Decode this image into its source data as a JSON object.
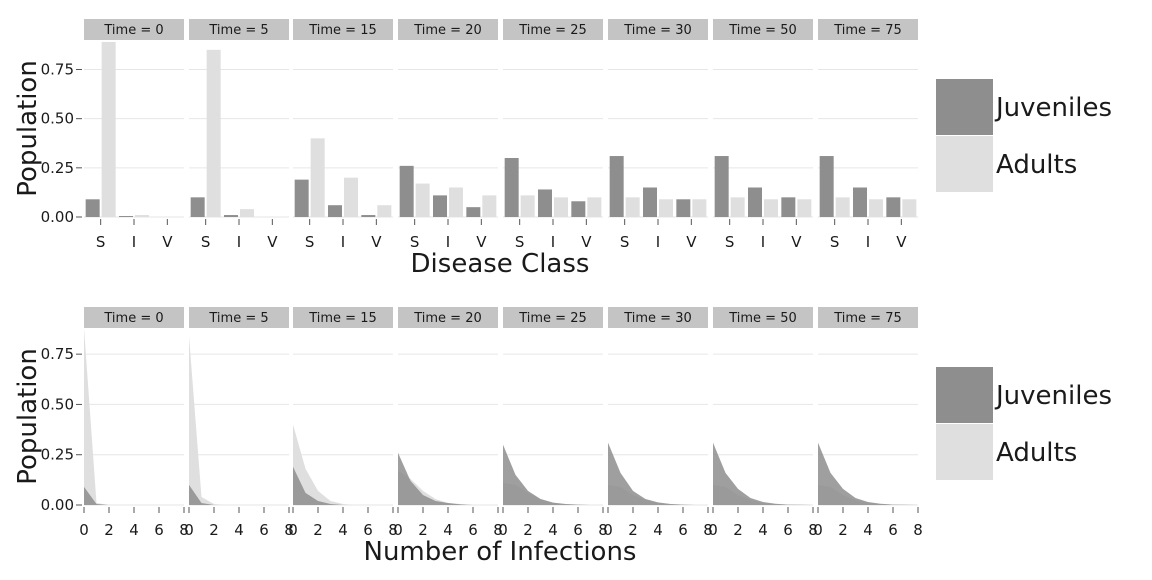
{
  "colors": {
    "juveniles": "#8e8e8e",
    "adults": "#dfdfdf",
    "strip": "#c4c4c4",
    "grid": "#e6e6e6"
  },
  "legend": {
    "items": [
      "Juveniles",
      "Adults"
    ]
  },
  "panels": [
    "Time = 0",
    "Time = 5",
    "Time = 15",
    "Time = 20",
    "Time = 25",
    "Time = 30",
    "Time = 50",
    "Time = 75"
  ],
  "chart_data": [
    {
      "type": "bar",
      "xlabel": "Disease Class",
      "ylabel": "Population",
      "categories": [
        "S",
        "I",
        "V"
      ],
      "ylim": [
        0,
        0.9
      ],
      "yticks": [
        "0.00",
        "0.25",
        "0.50",
        "0.75"
      ],
      "legend_position": "right",
      "facets": [
        {
          "label": "Time = 0",
          "series": [
            {
              "name": "Juveniles",
              "values": [
                0.09,
                0.005,
                0.0
              ]
            },
            {
              "name": "Adults",
              "values": [
                0.89,
                0.01,
                0.0
              ]
            }
          ]
        },
        {
          "label": "Time = 5",
          "series": [
            {
              "name": "Juveniles",
              "values": [
                0.1,
                0.01,
                0.0
              ]
            },
            {
              "name": "Adults",
              "values": [
                0.85,
                0.04,
                0.0
              ]
            }
          ]
        },
        {
          "label": "Time = 15",
          "series": [
            {
              "name": "Juveniles",
              "values": [
                0.19,
                0.06,
                0.01
              ]
            },
            {
              "name": "Adults",
              "values": [
                0.4,
                0.2,
                0.06
              ]
            }
          ]
        },
        {
          "label": "Time = 20",
          "series": [
            {
              "name": "Juveniles",
              "values": [
                0.26,
                0.11,
                0.05
              ]
            },
            {
              "name": "Adults",
              "values": [
                0.17,
                0.15,
                0.11
              ]
            }
          ]
        },
        {
          "label": "Time = 25",
          "series": [
            {
              "name": "Juveniles",
              "values": [
                0.3,
                0.14,
                0.08
              ]
            },
            {
              "name": "Adults",
              "values": [
                0.11,
                0.1,
                0.1
              ]
            }
          ]
        },
        {
          "label": "Time = 30",
          "series": [
            {
              "name": "Juveniles",
              "values": [
                0.31,
                0.15,
                0.09
              ]
            },
            {
              "name": "Adults",
              "values": [
                0.1,
                0.09,
                0.09
              ]
            }
          ]
        },
        {
          "label": "Time = 50",
          "series": [
            {
              "name": "Juveniles",
              "values": [
                0.31,
                0.15,
                0.1
              ]
            },
            {
              "name": "Adults",
              "values": [
                0.1,
                0.09,
                0.09
              ]
            }
          ]
        },
        {
          "label": "Time = 75",
          "series": [
            {
              "name": "Juveniles",
              "values": [
                0.31,
                0.15,
                0.1
              ]
            },
            {
              "name": "Adults",
              "values": [
                0.1,
                0.09,
                0.09
              ]
            }
          ]
        }
      ]
    },
    {
      "type": "area",
      "xlabel": "Number of Infections",
      "ylabel": "Population",
      "x": [
        0,
        1,
        2,
        3,
        4,
        5,
        6,
        7,
        8
      ],
      "xticks": [
        "0",
        "2",
        "4",
        "6",
        "8"
      ],
      "xlim": [
        0,
        8
      ],
      "ylim": [
        0,
        0.88
      ],
      "yticks": [
        "0.00",
        "0.25",
        "0.50",
        "0.75"
      ],
      "legend_position": "right",
      "facets": [
        {
          "label": "Time = 0",
          "series": [
            {
              "name": "Juveniles",
              "values": [
                0.09,
                0.005,
                0,
                0,
                0,
                0,
                0,
                0,
                0
              ]
            },
            {
              "name": "Adults",
              "values": [
                0.88,
                0.01,
                0,
                0,
                0,
                0,
                0,
                0,
                0
              ]
            }
          ]
        },
        {
          "label": "Time = 5",
          "series": [
            {
              "name": "Juveniles",
              "values": [
                0.1,
                0.01,
                0,
                0,
                0,
                0,
                0,
                0,
                0
              ]
            },
            {
              "name": "Adults",
              "values": [
                0.84,
                0.04,
                0.005,
                0,
                0,
                0,
                0,
                0,
                0
              ]
            }
          ]
        },
        {
          "label": "Time = 15",
          "series": [
            {
              "name": "Juveniles",
              "values": [
                0.19,
                0.06,
                0.02,
                0.005,
                0,
                0,
                0,
                0,
                0
              ]
            },
            {
              "name": "Adults",
              "values": [
                0.4,
                0.18,
                0.07,
                0.02,
                0.005,
                0,
                0,
                0,
                0
              ]
            }
          ]
        },
        {
          "label": "Time = 20",
          "series": [
            {
              "name": "Juveniles",
              "values": [
                0.26,
                0.12,
                0.05,
                0.02,
                0.01,
                0.003,
                0,
                0,
                0
              ]
            },
            {
              "name": "Adults",
              "values": [
                0.17,
                0.13,
                0.07,
                0.03,
                0.01,
                0.005,
                0,
                0,
                0
              ]
            }
          ]
        },
        {
          "label": "Time = 25",
          "series": [
            {
              "name": "Juveniles",
              "values": [
                0.3,
                0.15,
                0.07,
                0.03,
                0.012,
                0.005,
                0.002,
                0,
                0
              ]
            },
            {
              "name": "Adults",
              "values": [
                0.11,
                0.1,
                0.06,
                0.03,
                0.012,
                0.005,
                0.002,
                0,
                0
              ]
            }
          ]
        },
        {
          "label": "Time = 30",
          "series": [
            {
              "name": "Juveniles",
              "values": [
                0.31,
                0.16,
                0.07,
                0.03,
                0.013,
                0.005,
                0.002,
                0,
                0
              ]
            },
            {
              "name": "Adults",
              "values": [
                0.1,
                0.09,
                0.05,
                0.025,
                0.01,
                0.005,
                0.002,
                0,
                0
              ]
            }
          ]
        },
        {
          "label": "Time = 50",
          "series": [
            {
              "name": "Juveniles",
              "values": [
                0.31,
                0.16,
                0.08,
                0.035,
                0.015,
                0.006,
                0.002,
                0.001,
                0
              ]
            },
            {
              "name": "Adults",
              "values": [
                0.1,
                0.09,
                0.05,
                0.025,
                0.01,
                0.005,
                0.002,
                0.001,
                0
              ]
            }
          ]
        },
        {
          "label": "Time = 75",
          "series": [
            {
              "name": "Juveniles",
              "values": [
                0.31,
                0.16,
                0.08,
                0.035,
                0.015,
                0.006,
                0.002,
                0.001,
                0
              ]
            },
            {
              "name": "Adults",
              "values": [
                0.1,
                0.09,
                0.05,
                0.025,
                0.01,
                0.005,
                0.002,
                0.001,
                0
              ]
            }
          ]
        }
      ]
    }
  ]
}
